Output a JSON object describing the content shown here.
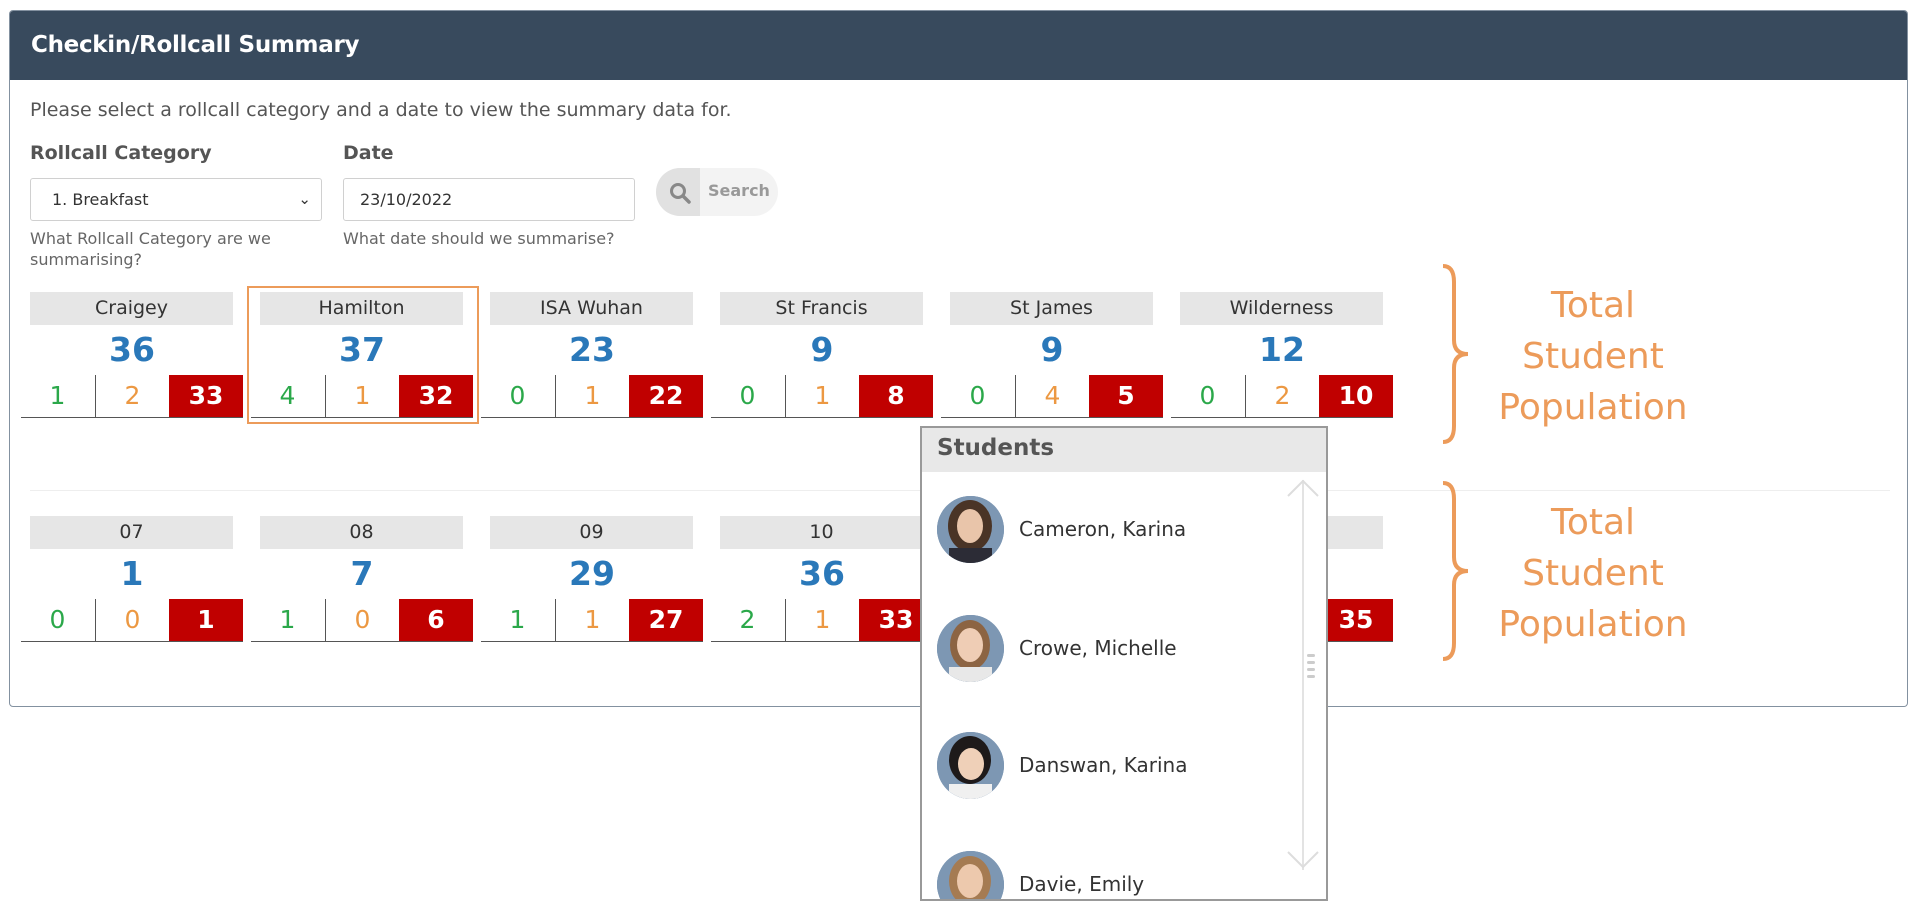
{
  "header": {
    "title": "Checkin/Rollcall Summary"
  },
  "intro": "Please select a rollcall category and a date to view the summary data for.",
  "form": {
    "category_label": "Rollcall Category",
    "category_value": "1. Breakfast",
    "category_help": "What Rollcall Category are we summarising?",
    "date_label": "Date",
    "date_value": "23/10/2022",
    "date_help": "What date should we summarise?",
    "search_label": "Search"
  },
  "houses": [
    {
      "name": "Craigey",
      "total": "36",
      "green": "1",
      "orange": "2",
      "red": "33"
    },
    {
      "name": "Hamilton",
      "total": "37",
      "green": "4",
      "orange": "1",
      "red": "32"
    },
    {
      "name": "ISA Wuhan",
      "total": "23",
      "green": "0",
      "orange": "1",
      "red": "22"
    },
    {
      "name": "St Francis",
      "total": "9",
      "green": "0",
      "orange": "1",
      "red": "8"
    },
    {
      "name": "St James",
      "total": "9",
      "green": "0",
      "orange": "4",
      "red": "5"
    },
    {
      "name": "Wilderness",
      "total": "12",
      "green": "0",
      "orange": "2",
      "red": "10"
    }
  ],
  "years": [
    {
      "name": "07",
      "total": "1",
      "green": "0",
      "orange": "0",
      "red": "1"
    },
    {
      "name": "08",
      "total": "7",
      "green": "1",
      "orange": "0",
      "red": "6"
    },
    {
      "name": "09",
      "total": "29",
      "green": "1",
      "orange": "1",
      "red": "27"
    },
    {
      "name": "10",
      "total": "36",
      "green": "2",
      "orange": "1",
      "red": "33"
    },
    {
      "name": "",
      "total": "",
      "green": "",
      "orange": "",
      "red": "35"
    }
  ],
  "annotations": {
    "population_label_line1": "Total",
    "population_label_line2": "Student",
    "population_label_line3": "Population"
  },
  "students_popup": {
    "title": "Students",
    "students": [
      "Cameron, Karina",
      "Crowe, Michelle",
      "Danswan, Karina",
      "Davie, Emily"
    ]
  },
  "colors": {
    "header": "#384a5d",
    "total": "#2a78b9",
    "green": "#2ba84a",
    "orange": "#ec9842",
    "red": "#c00000",
    "annotation": "#ec9b5a"
  }
}
